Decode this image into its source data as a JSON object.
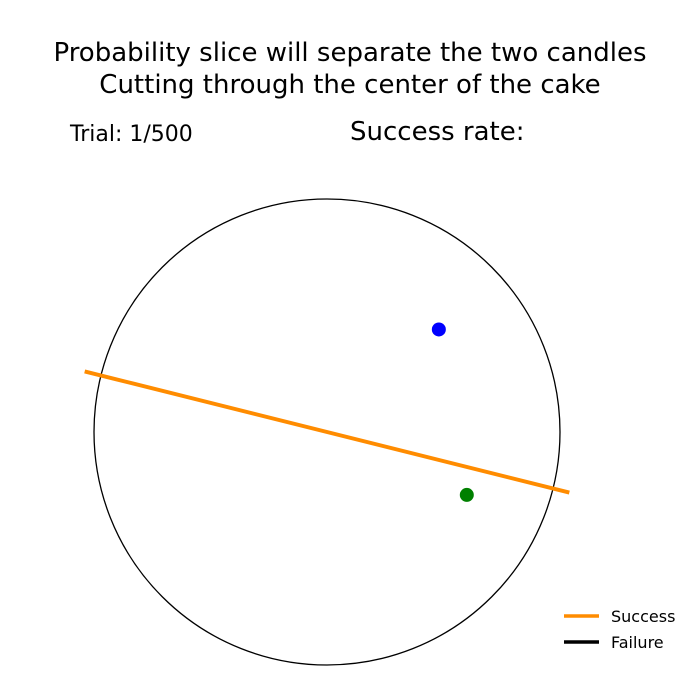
{
  "chart_data": {
    "type": "scatter",
    "title_lines": [
      "Probability slice will separate the two candles",
      "Cutting through the center of the cake"
    ],
    "trial_label": "Trial:",
    "trial_current": 1,
    "trial_total": 500,
    "success_rate_label": "Success rate:",
    "success_rate_value": "",
    "cake": {
      "center": [
        0,
        0
      ],
      "radius": 1.0,
      "edge_color": "#000000"
    },
    "candles": [
      {
        "x": 0.48,
        "y": 0.44,
        "color": "#0000ff"
      },
      {
        "x": 0.6,
        "y": -0.27,
        "color": "#008000"
      }
    ],
    "slice": {
      "x": [
        -1.04,
        1.04
      ],
      "y": [
        0.26,
        -0.26
      ],
      "outcome": "Success"
    },
    "legend": {
      "placement": "lower-right",
      "entries": [
        {
          "label": "Success",
          "color": "#ff8c00"
        },
        {
          "label": "Failure",
          "color": "#000000"
        }
      ]
    }
  }
}
